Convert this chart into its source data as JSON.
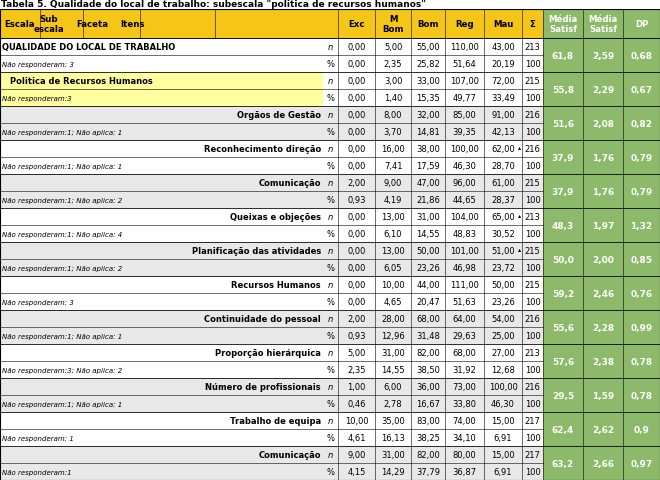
{
  "title": "Tabela 5. Qualidade do local de trabalho: subescala \"politica de recursos humanos\"",
  "col_header_bg": "#F5C518",
  "green_col_bg": "#8CB96A",
  "green_col_light": "#D4E8C2",
  "yellow_row_bg": "#FFFFA0",
  "gray_row_bg": "#E8E8E8",
  "white_row_bg": "#FFFFFF",
  "rows": [
    {
      "label": "QUALIDADE DO LOCAL DE TRABALHO",
      "label_align": "left",
      "label_bold": true,
      "label_bg": "#FFFFFF",
      "label_indent": 0,
      "n": [
        "n",
        "0,00",
        "5,00",
        "55,00",
        "110,00",
        "43,00",
        "213"
      ],
      "p": [
        "%",
        "0,00",
        "2,35",
        "25,82",
        "51,64",
        "20,19",
        "100"
      ],
      "note": "Não responderam: 3",
      "ms1": "61,8",
      "ms2": "2,59",
      "dp": "0,68",
      "data_bg": "#FFFFFF",
      "mark": false
    },
    {
      "label": "Politica de Recursos Humanos",
      "label_align": "left",
      "label_bold": true,
      "label_bg": "#FFFFA0",
      "label_indent": 8,
      "n": [
        "n",
        "0,00",
        "3,00",
        "33,00",
        "107,00",
        "72,00",
        "215"
      ],
      "p": [
        "%",
        "0,00",
        "1,40",
        "15,35",
        "49,77",
        "33,49",
        "100"
      ],
      "note": "Não responderam:3",
      "ms1": "55,8",
      "ms2": "2,29",
      "dp": "0,67",
      "data_bg": "#FFFFFF",
      "mark": false
    },
    {
      "label": "Orgãos de Gestão",
      "label_align": "right",
      "label_bold": true,
      "label_bg": "#E8E8E8",
      "label_indent": 0,
      "n": [
        "n",
        "0,00",
        "8,00",
        "32,00",
        "85,00",
        "91,00",
        "216"
      ],
      "p": [
        "%",
        "0,00",
        "3,70",
        "14,81",
        "39,35",
        "42,13",
        "100"
      ],
      "note": "Não responderam:1; Não aplica: 1",
      "ms1": "51,6",
      "ms2": "2,08",
      "dp": "0,82",
      "data_bg": "#E8E8E8",
      "mark": false
    },
    {
      "label": "Reconhecimento direção",
      "label_align": "right",
      "label_bold": true,
      "label_bg": "#FFFFFF",
      "label_indent": 0,
      "n": [
        "n",
        "0,00",
        "16,00",
        "38,00",
        "100,00",
        "62,00",
        "216"
      ],
      "p": [
        "%",
        "0,00",
        "7,41",
        "17,59",
        "46,30",
        "28,70",
        "100"
      ],
      "note": "Não responderam:1; Não aplica: 1",
      "ms1": "37,9",
      "ms2": "1,76",
      "dp": "0,79",
      "data_bg": "#FFFFFF",
      "mark": true
    },
    {
      "label": "Comunicação",
      "label_align": "right",
      "label_bold": true,
      "label_bg": "#E8E8E8",
      "label_indent": 0,
      "n": [
        "n",
        "2,00",
        "9,00",
        "47,00",
        "96,00",
        "61,00",
        "215"
      ],
      "p": [
        "%",
        "0,93",
        "4,19",
        "21,86",
        "44,65",
        "28,37",
        "100"
      ],
      "note": "Não responderam:1; Não aplica: 2",
      "ms1": "37,9",
      "ms2": "1,76",
      "dp": "0,79",
      "data_bg": "#E8E8E8",
      "mark": false
    },
    {
      "label": "Queixas e objeções",
      "label_align": "right",
      "label_bold": true,
      "label_bg": "#FFFFFF",
      "label_indent": 0,
      "n": [
        "n",
        "0,00",
        "13,00",
        "31,00",
        "104,00",
        "65,00",
        "213"
      ],
      "p": [
        "%",
        "0,00",
        "6,10",
        "14,55",
        "48,83",
        "30,52",
        "100"
      ],
      "note": "Não responderam:1; Não aplica: 4",
      "ms1": "48,3",
      "ms2": "1,97",
      "dp": "1,32",
      "data_bg": "#FFFFFF",
      "mark": true
    },
    {
      "label": "Planificação das atividades",
      "label_align": "right",
      "label_bold": true,
      "label_bg": "#E8E8E8",
      "label_indent": 0,
      "n": [
        "n",
        "0,00",
        "13,00",
        "50,00",
        "101,00",
        "51,00",
        "215"
      ],
      "p": [
        "%",
        "0,00",
        "6,05",
        "23,26",
        "46,98",
        "23,72",
        "100"
      ],
      "note": "Não responderam:1; Não aplica: 2",
      "ms1": "50,0",
      "ms2": "2,00",
      "dp": "0,85",
      "data_bg": "#E8E8E8",
      "mark": true
    },
    {
      "label": "Recursos Humanos",
      "label_align": "right",
      "label_bold": true,
      "label_bg": "#FFFFFF",
      "label_indent": 0,
      "n": [
        "n",
        "0,00",
        "10,00",
        "44,00",
        "111,00",
        "50,00",
        "215"
      ],
      "p": [
        "%",
        "0,00",
        "4,65",
        "20,47",
        "51,63",
        "23,26",
        "100"
      ],
      "note": "Não responderam: 3",
      "ms1": "59,2",
      "ms2": "2,46",
      "dp": "0,76",
      "data_bg": "#FFFFFF",
      "mark": false
    },
    {
      "label": "Continuidade do pessoal",
      "label_align": "right",
      "label_bold": true,
      "label_bg": "#E8E8E8",
      "label_indent": 0,
      "n": [
        "n",
        "2,00",
        "28,00",
        "68,00",
        "64,00",
        "54,00",
        "216"
      ],
      "p": [
        "%",
        "0,93",
        "12,96",
        "31,48",
        "29,63",
        "25,00",
        "100"
      ],
      "note": "Não responderam:1; Não aplica: 1",
      "ms1": "55,6",
      "ms2": "2,28",
      "dp": "0,99",
      "data_bg": "#E8E8E8",
      "mark": false
    },
    {
      "label": "Proporção hierárquica",
      "label_align": "right",
      "label_bold": true,
      "label_bg": "#FFFFFF",
      "label_indent": 0,
      "n": [
        "n",
        "5,00",
        "31,00",
        "82,00",
        "68,00",
        "27,00",
        "213"
      ],
      "p": [
        "%",
        "2,35",
        "14,55",
        "38,50",
        "31,92",
        "12,68",
        "100"
      ],
      "note": "Não responderam:3; Não aplica: 2",
      "ms1": "57,6",
      "ms2": "2,38",
      "dp": "0,78",
      "data_bg": "#FFFFFF",
      "mark": false
    },
    {
      "label": "Número de profissionais",
      "label_align": "right",
      "label_bold": true,
      "label_bg": "#E8E8E8",
      "label_indent": 0,
      "n": [
        "n",
        "1,00",
        "6,00",
        "36,00",
        "73,00",
        "100,00",
        "216"
      ],
      "p": [
        "%",
        "0,46",
        "2,78",
        "16,67",
        "33,80",
        "46,30",
        "100"
      ],
      "note": "Não responderam:1; Não aplica: 1",
      "ms1": "29,5",
      "ms2": "1,59",
      "dp": "0,78",
      "data_bg": "#E8E8E8",
      "mark": false
    },
    {
      "label": "Trabalho de equipa",
      "label_align": "right",
      "label_bold": true,
      "label_bg": "#FFFFFF",
      "label_indent": 0,
      "n": [
        "n",
        "10,00",
        "35,00",
        "83,00",
        "74,00",
        "15,00",
        "217"
      ],
      "p": [
        "%",
        "4,61",
        "16,13",
        "38,25",
        "34,10",
        "6,91",
        "100"
      ],
      "note": "Não responderam: 1",
      "ms1": "62,4",
      "ms2": "2,62",
      "dp": "0,9",
      "data_bg": "#FFFFFF",
      "mark": false
    },
    {
      "label": "Comunicação",
      "label_align": "right",
      "label_bold": true,
      "label_bg": "#E8E8E8",
      "label_indent": 0,
      "n": [
        "n",
        "9,00",
        "31,00",
        "82,00",
        "80,00",
        "15,00",
        "217"
      ],
      "p": [
        "%",
        "4,15",
        "14,29",
        "37,79",
        "36,87",
        "6,91",
        "100"
      ],
      "note": "Não responderam:1",
      "ms1": "63,2",
      "ms2": "2,66",
      "dp": "0,97",
      "data_bg": "#E8E8E8",
      "mark": false
    }
  ]
}
